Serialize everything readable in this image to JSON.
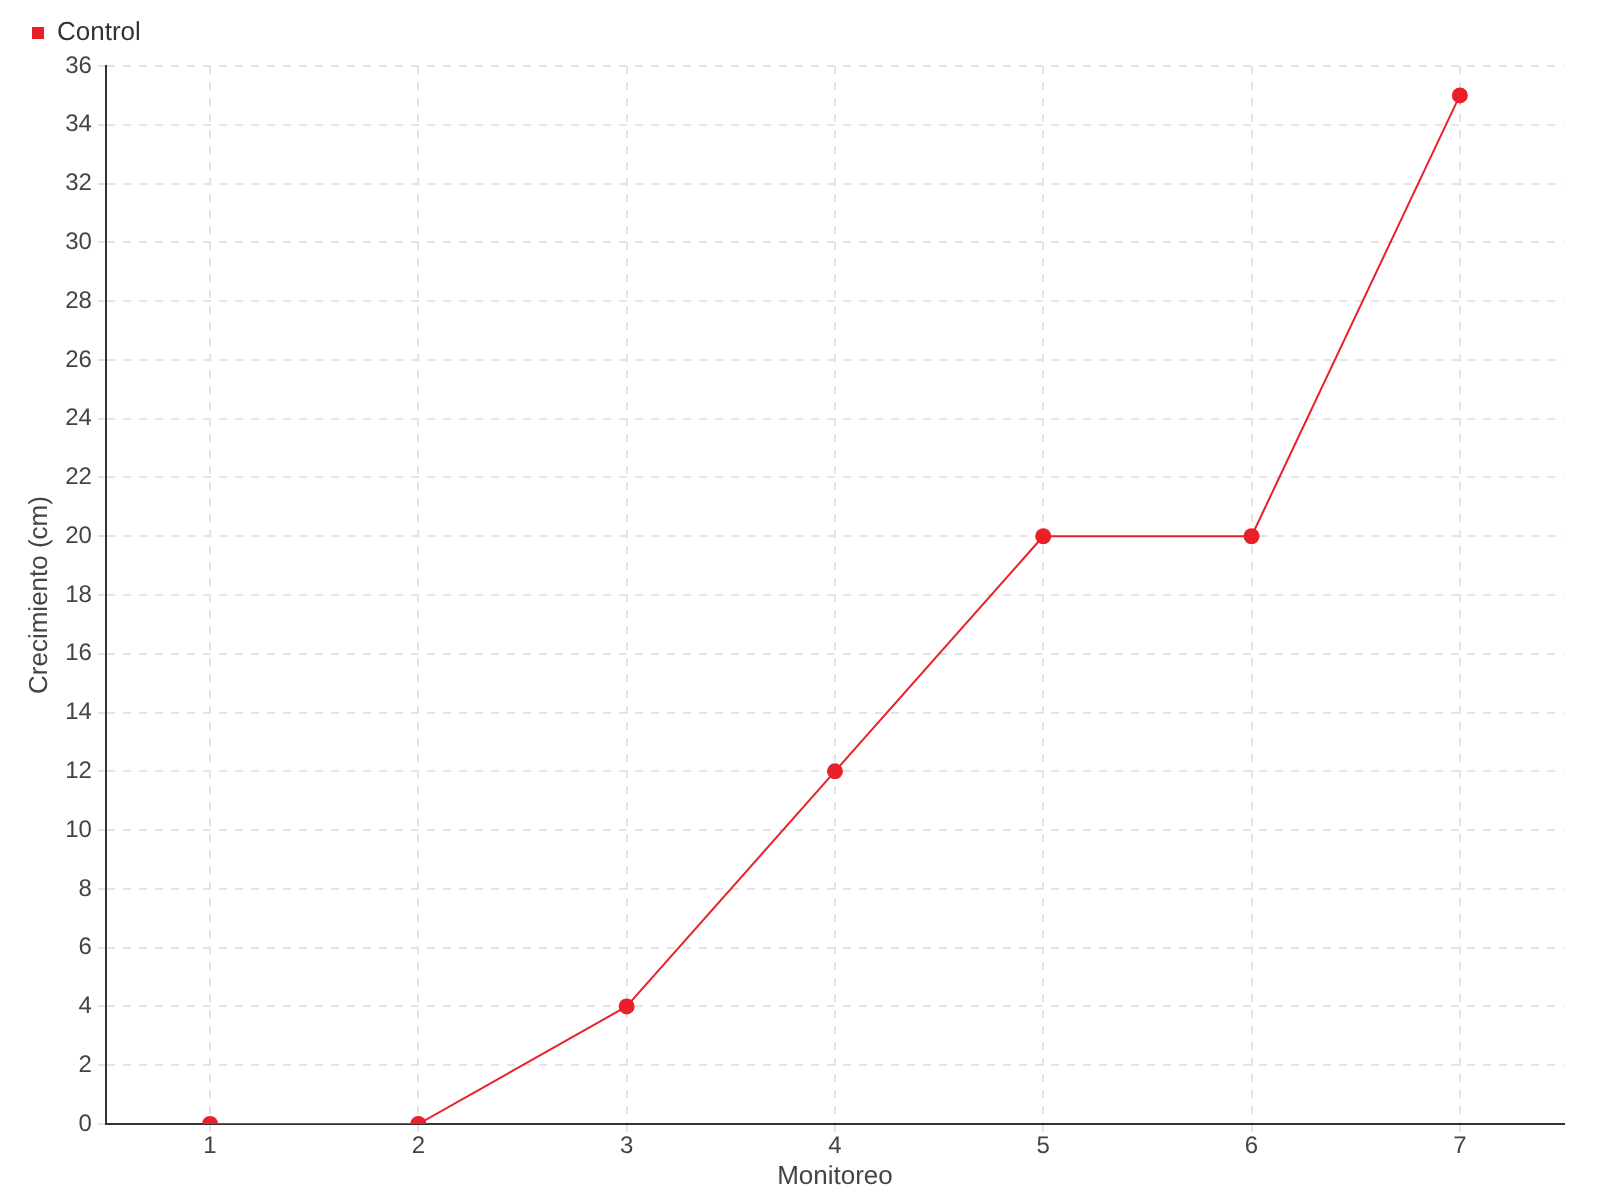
{
  "chart_data": {
    "type": "line",
    "xlabel": "Monitoreo",
    "ylabel": "Crecimiento (cm)",
    "categories": [
      "1",
      "2",
      "3",
      "4",
      "5",
      "6",
      "7"
    ],
    "series": [
      {
        "name": "Control",
        "color": "#e8202a",
        "values": [
          0,
          0,
          4,
          12,
          20,
          20,
          35
        ]
      }
    ],
    "ylim": [
      0,
      36
    ],
    "yticks": [
      0,
      2,
      4,
      6,
      8,
      10,
      12,
      14,
      16,
      18,
      20,
      22,
      24,
      26,
      28,
      30,
      32,
      34,
      36
    ],
    "grid": true,
    "legend": "top left",
    "marker": "circle",
    "line_style": "solid"
  }
}
